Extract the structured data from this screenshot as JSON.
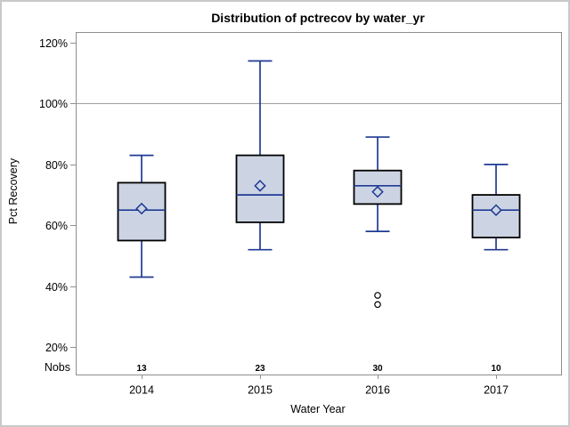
{
  "chart_data": {
    "type": "boxplot",
    "title": "Distribution of pctrecov by water_yr",
    "xlabel": "Water Year",
    "ylabel": "Pct Recovery",
    "categories": [
      "2014",
      "2015",
      "2016",
      "2017"
    ],
    "nobs": {
      "label": "Nobs",
      "values": [
        "13",
        "23",
        "30",
        "10"
      ]
    },
    "y_ticks": [
      20,
      40,
      60,
      80,
      100,
      120
    ],
    "y_tick_suffix": "%",
    "ylim": [
      11,
      123.5
    ],
    "reference_line": 100,
    "grid": false,
    "legend": "none",
    "series": [
      {
        "category": "2014",
        "whisker_low": 43,
        "q1": 55,
        "median": 65,
        "q3": 74,
        "whisker_high": 83,
        "mean": 65.5,
        "outliers": []
      },
      {
        "category": "2015",
        "whisker_low": 52,
        "q1": 61,
        "median": 70,
        "q3": 83,
        "whisker_high": 114,
        "mean": 73,
        "outliers": []
      },
      {
        "category": "2016",
        "whisker_low": 58,
        "q1": 67,
        "median": 73,
        "q3": 78,
        "whisker_high": 89,
        "mean": 71,
        "outliers": [
          37,
          34
        ]
      },
      {
        "category": "2017",
        "whisker_low": 52,
        "q1": 56,
        "median": 65,
        "q3": 70,
        "whisker_high": 80,
        "mean": 65,
        "outliers": []
      }
    ],
    "colors": {
      "box_fill": "#ccd4e4",
      "box_border": "#000000",
      "line": "#1f3a94",
      "reference_line": "#a3a3a3",
      "axis": "#8e8e8e",
      "outlier": "#000000",
      "text": "#000000",
      "canvas_border": "#c9c9c9",
      "background": "#ffffff"
    }
  }
}
